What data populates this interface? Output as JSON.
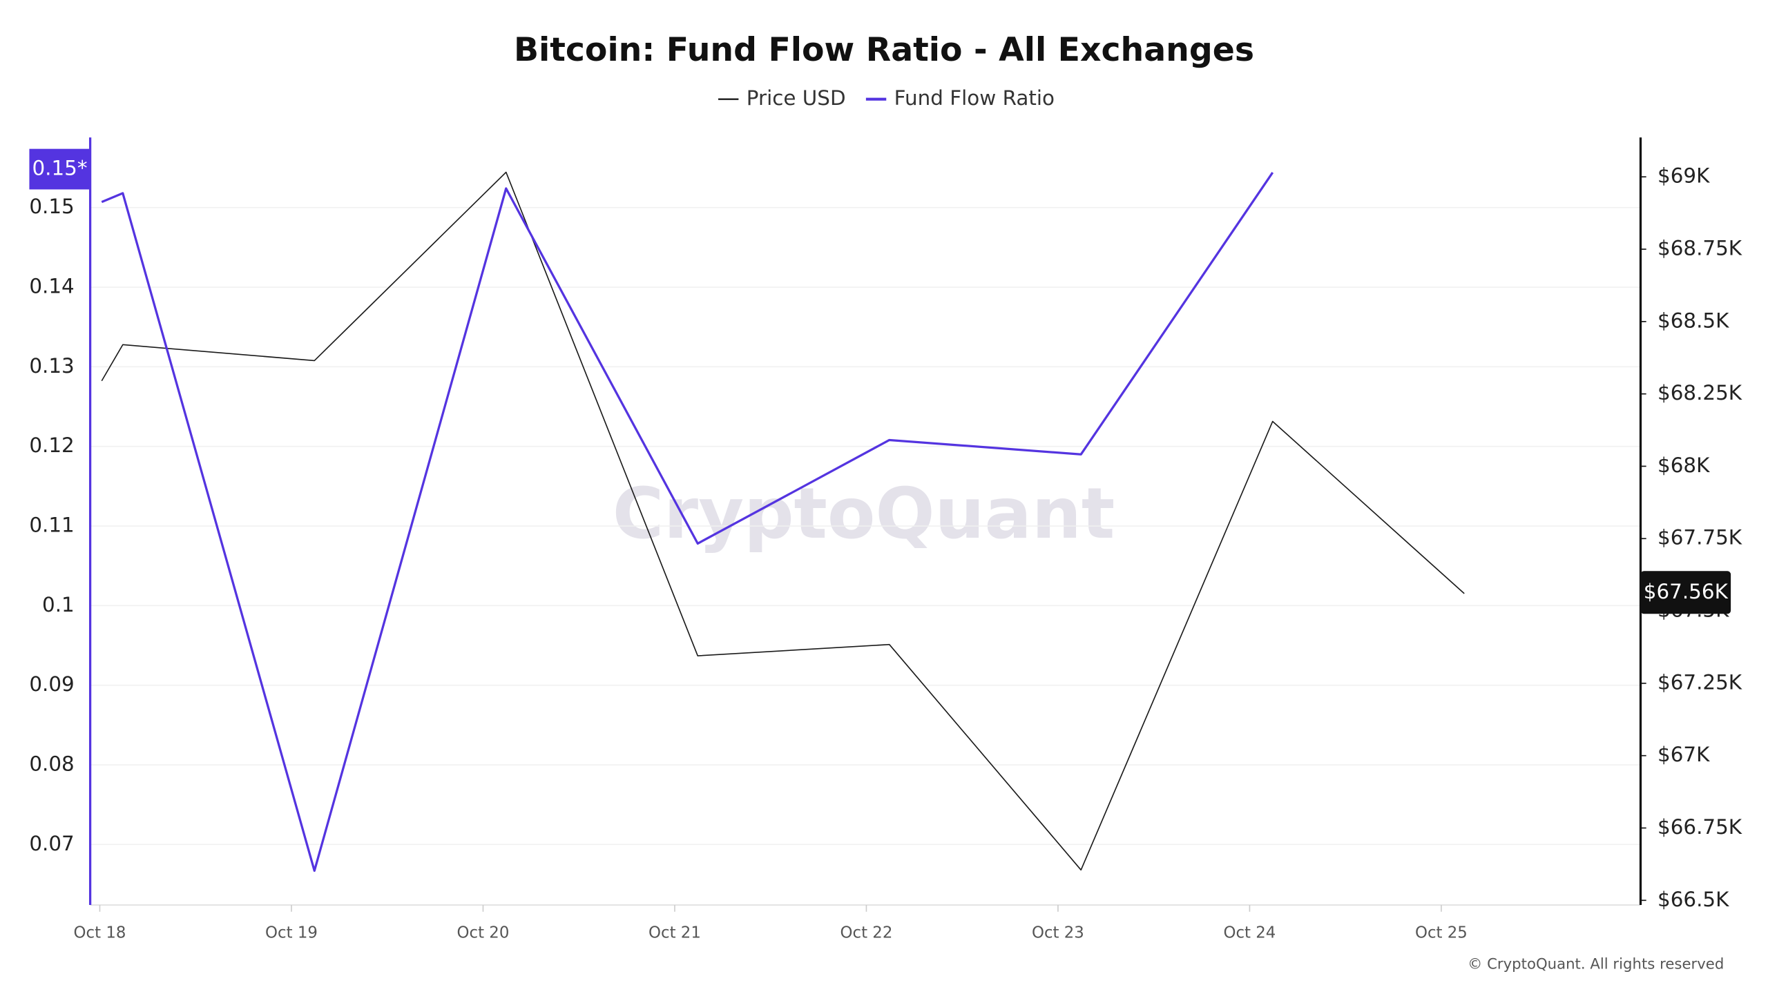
{
  "chart_data": {
    "type": "line",
    "title": "Bitcoin: Fund Flow Ratio - All Exchanges",
    "watermark": "CryptoQuant",
    "footer": "© CryptoQuant. All rights reserved",
    "x": [
      18.01,
      18.12,
      19.12,
      20.12,
      21.12,
      22.12,
      23.12,
      24.12,
      25.12
    ],
    "xlim": [
      17.95,
      26.04
    ],
    "xticks": [
      {
        "value": 18,
        "label": "Oct 18"
      },
      {
        "value": 19,
        "label": "Oct 19"
      },
      {
        "value": 20,
        "label": "Oct 20"
      },
      {
        "value": 21,
        "label": "Oct 21"
      },
      {
        "value": 22,
        "label": "Oct 22"
      },
      {
        "value": 23,
        "label": "Oct 23"
      },
      {
        "value": 24,
        "label": "Oct 24"
      },
      {
        "value": 25,
        "label": "Oct 25"
      }
    ],
    "ylim": [
      0.0624,
      0.1588
    ],
    "yticks": [
      0.07,
      0.08,
      0.09,
      0.1,
      0.11,
      0.12,
      0.13,
      0.14,
      0.15
    ],
    "y2lim": [
      66484,
      69136
    ],
    "y2ticks": [
      {
        "value": 66500,
        "label": "$66.5K"
      },
      {
        "value": 66750,
        "label": "$66.75K"
      },
      {
        "value": 67000,
        "label": "$67K"
      },
      {
        "value": 67250,
        "label": "$67.25K"
      },
      {
        "value": 67500,
        "label": "$67.5K"
      },
      {
        "value": 67750,
        "label": "$67.75K"
      },
      {
        "value": 68000,
        "label": "$68K"
      },
      {
        "value": 68250,
        "label": "$68.25K"
      },
      {
        "value": 68500,
        "label": "$68.5K"
      },
      {
        "value": 68750,
        "label": "$68.75K"
      },
      {
        "value": 69000,
        "label": "$69K"
      }
    ],
    "grid": true,
    "series": [
      {
        "name": "Price USD",
        "color": "#1a1a1a",
        "axis": "y2",
        "width": 1,
        "values": [
          68295,
          68420,
          68365,
          69016,
          67345,
          67384,
          66605,
          68155,
          67560
        ],
        "current": {
          "value": 67560,
          "label": "$67.56K"
        }
      },
      {
        "name": "Fund Flow Ratio",
        "color": "#5434e0",
        "width": 2,
        "values": [
          0.1507,
          0.1518,
          0.0667,
          0.1524,
          0.1078,
          0.1208,
          0.119,
          0.1544,
          null
        ],
        "current": {
          "value": 0.1544,
          "label": "0.15*"
        }
      }
    ]
  }
}
